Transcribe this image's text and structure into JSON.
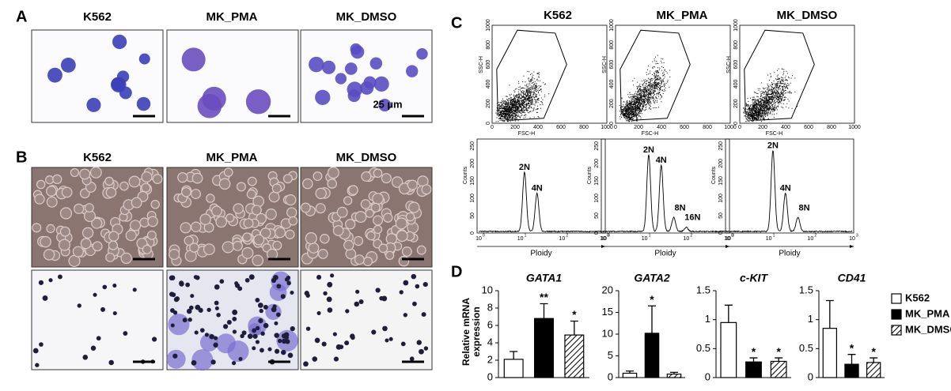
{
  "panels": {
    "A": {
      "label": "A",
      "titles": [
        "K562",
        "MK_PMA",
        "MK_DMSO"
      ],
      "scale_bar": "25 µm"
    },
    "B": {
      "label": "B",
      "titles": [
        "K562",
        "MK_PMA",
        "MK_DMSO"
      ]
    },
    "C": {
      "label": "C",
      "titles": [
        "K562",
        "MK_PMA",
        "MK_DMSO"
      ],
      "scatter": {
        "x_label": "FSC-H",
        "y_label": "SSC-H",
        "ticks": [
          0,
          200,
          400,
          600,
          800,
          1000
        ]
      },
      "histogram": {
        "x_label": "Ploidy",
        "y_label": "Counts",
        "yticks": [
          0,
          50,
          100,
          150,
          200,
          250
        ],
        "xtick_base": "10",
        "xtick_exponents": [
          "0",
          "1",
          "2",
          "3"
        ],
        "peaks": [
          [
            "2N",
            "4N"
          ],
          [
            "2N",
            "4N",
            "8N",
            "16N"
          ],
          [
            "2N",
            "4N",
            "8N"
          ]
        ]
      }
    },
    "D": {
      "label": "D",
      "y_label": [
        "Relative mRNA",
        "expression"
      ],
      "legend": [
        {
          "name": "K562",
          "fill": "white"
        },
        {
          "name": "MK_PMA",
          "fill": "black"
        },
        {
          "name": "MK_DMSO",
          "fill": "hatch"
        }
      ]
    }
  },
  "chart_data": [
    {
      "type": "bar",
      "title": "GATA1",
      "values": [
        2.1,
        6.8,
        4.9
      ],
      "errors": [
        0.9,
        1.7,
        1.6
      ],
      "significance": [
        null,
        "**",
        "*"
      ],
      "ylim": [
        0,
        10
      ],
      "yticks": [
        0,
        2,
        4,
        6,
        8,
        10
      ]
    },
    {
      "type": "bar",
      "title": "GATA2",
      "values": [
        1.0,
        10.2,
        0.8
      ],
      "errors": [
        0.5,
        6.3,
        0.4
      ],
      "significance": [
        null,
        "*",
        null
      ],
      "ylim": [
        0,
        20
      ],
      "yticks": [
        0,
        5,
        10,
        15,
        20
      ]
    },
    {
      "type": "bar",
      "title": "c-KIT",
      "values": [
        0.95,
        0.27,
        0.28
      ],
      "errors": [
        0.3,
        0.07,
        0.06
      ],
      "significance": [
        null,
        "*",
        "*"
      ],
      "ylim": [
        0,
        1.5
      ],
      "yticks": [
        0,
        0.5,
        1,
        1.5
      ]
    },
    {
      "type": "bar",
      "title": "CD41",
      "values": [
        0.85,
        0.23,
        0.26
      ],
      "errors": [
        0.48,
        0.17,
        0.08
      ],
      "significance": [
        null,
        "*",
        "*"
      ],
      "ylim": [
        0,
        1.5
      ],
      "yticks": [
        0,
        0.5,
        1,
        1.5
      ]
    }
  ]
}
